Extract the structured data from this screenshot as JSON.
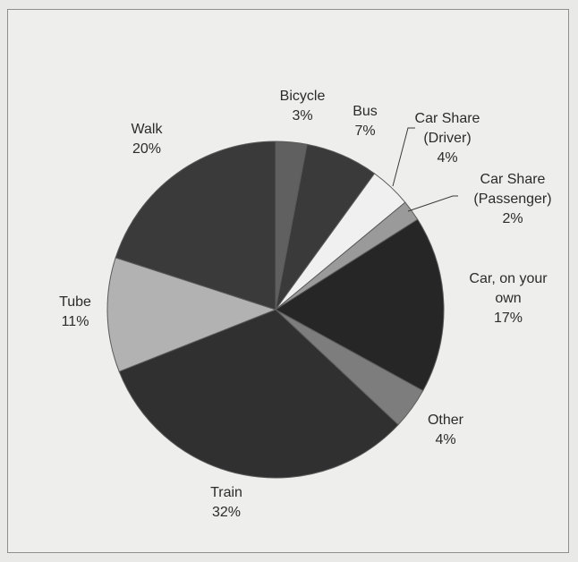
{
  "chart_data": {
    "type": "pie",
    "title": "",
    "slices": [
      {
        "label_lines": [
          "Bicycle"
        ],
        "pct_text": "3%",
        "value": 3,
        "color": "#606060"
      },
      {
        "label_lines": [
          "Bus"
        ],
        "pct_text": "7%",
        "value": 7,
        "color": "#3a3a3a"
      },
      {
        "label_lines": [
          "Car Share",
          "(Driver)"
        ],
        "pct_text": "4%",
        "value": 4,
        "color": "#f0f0f0"
      },
      {
        "label_lines": [
          "Car Share",
          "(Passenger)"
        ],
        "pct_text": "2%",
        "value": 2,
        "color": "#9a9a9a"
      },
      {
        "label_lines": [
          "Car, on your",
          "own"
        ],
        "pct_text": "17%",
        "value": 17,
        "color": "#262626"
      },
      {
        "label_lines": [
          "Other"
        ],
        "pct_text": "4%",
        "value": 4,
        "color": "#7d7d7d"
      },
      {
        "label_lines": [
          "Train"
        ],
        "pct_text": "32%",
        "value": 32,
        "color": "#303030"
      },
      {
        "label_lines": [
          "Tube"
        ],
        "pct_text": "11%",
        "value": 11,
        "color": "#b2b2b2"
      },
      {
        "label_lines": [
          "Walk"
        ],
        "pct_text": "20%",
        "value": 20,
        "color": "#3a3a3a"
      }
    ]
  }
}
